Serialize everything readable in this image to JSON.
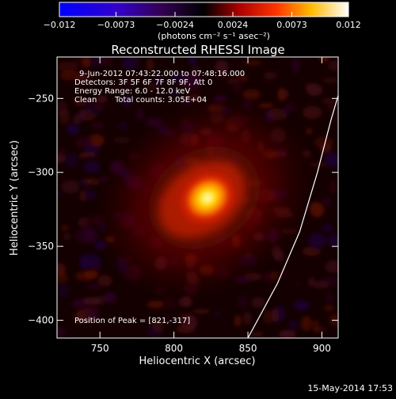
{
  "chart_data": {
    "type": "heatmap",
    "title": "Reconstructed RHESSI Image",
    "xlabel": "Heliocentric X (arcsec)",
    "ylabel": "Heliocentric Y (arcsec)",
    "xlim": [
      721,
      911
    ],
    "ylim": [
      -412,
      -222
    ],
    "x_ticks": [
      750,
      800,
      850,
      900
    ],
    "x_tick_labels": [
      "750",
      "800",
      "850",
      "900"
    ],
    "y_ticks": [
      -250,
      -300,
      -350,
      -400
    ],
    "y_tick_labels": [
      "−250",
      "−300",
      "−350",
      "−400"
    ],
    "colorbar": {
      "range": [
        -0.012,
        0.012
      ],
      "ticks": [
        -0.012,
        -0.0073,
        -0.0024,
        0.0024,
        0.0073,
        0.012
      ],
      "tick_labels": [
        "−0.012",
        "−0.0073",
        "−0.0024",
        "0.0024",
        "0.0073",
        "0.012"
      ],
      "unit_label": "(photons cm⁻² s⁻¹ asec⁻²)",
      "colormap": "blue-purple-red-yellow-white"
    },
    "peak": {
      "x": 821,
      "y": -317
    },
    "annotations": {
      "time_range": "9-Jun-2012 07:43:22.000 to 07:48:16.000",
      "detectors": "Detectors: 3F 5F 6F 7F 8F 9F, Att 0",
      "energy": "Energy Range: 6.0 - 12.0 keV",
      "algorithm": "Clean",
      "counts": "Total counts: 3.05E+04",
      "peak_text": "Position of Peak = [821,-317]"
    },
    "limb_arc": [
      [
        850,
        -412
      ],
      [
        870,
        -375
      ],
      [
        885,
        -340
      ],
      [
        897,
        -300
      ],
      [
        906,
        -265
      ],
      [
        911,
        -248
      ]
    ],
    "footer_timestamp": "15-May-2014 17:53"
  }
}
